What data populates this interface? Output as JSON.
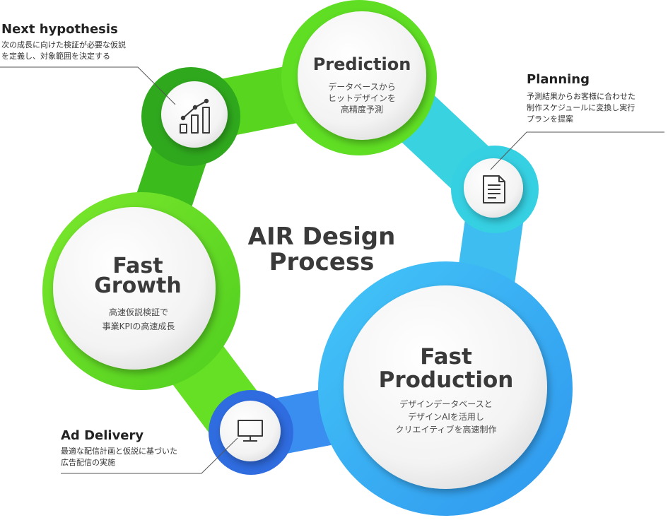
{
  "center_title": [
    "AIR Design",
    "Process"
  ],
  "nodes": {
    "prediction": {
      "title": [
        "Prediction"
      ],
      "desc": [
        "データベースから",
        "ヒットデザインを",
        "高精度予測"
      ]
    },
    "fast_growth": {
      "title": [
        "Fast",
        "Growth"
      ],
      "desc": [
        "高速仮説検証で",
        "事業KPIの高速成長"
      ]
    },
    "fast_production": {
      "title": [
        "Fast",
        "Production"
      ],
      "desc": [
        "デザインデータベースと",
        "デザインAIを活用し",
        "クリエイティブを高速制作"
      ]
    }
  },
  "icons": {
    "next_hypothesis": "bar-chart-trend-icon",
    "planning": "document-icon",
    "ad_delivery": "monitor-icon"
  },
  "annotations": {
    "next_hypothesis": {
      "heading": "Next hypothesis",
      "desc": [
        "次の成長に向けた検証が必要な仮説",
        "を定義し、対象範囲を決定する"
      ]
    },
    "planning": {
      "heading": "Planning",
      "desc": [
        "予測結果からお客様に合わせた",
        "制作スケジュールに変換し実行",
        "プランを提案"
      ]
    },
    "ad_delivery": {
      "heading": "Ad Delivery",
      "desc": [
        "最適な配信計画と仮説に基づいた",
        "広告配信の実施"
      ]
    }
  },
  "colors": {
    "green_light": "#63df24",
    "green_dark": "#2aa51d",
    "cyan": "#35d2e0",
    "blue": "#3ab0f5",
    "blue_deep": "#2f6ce0",
    "text_dark": "#3a3a3a"
  }
}
